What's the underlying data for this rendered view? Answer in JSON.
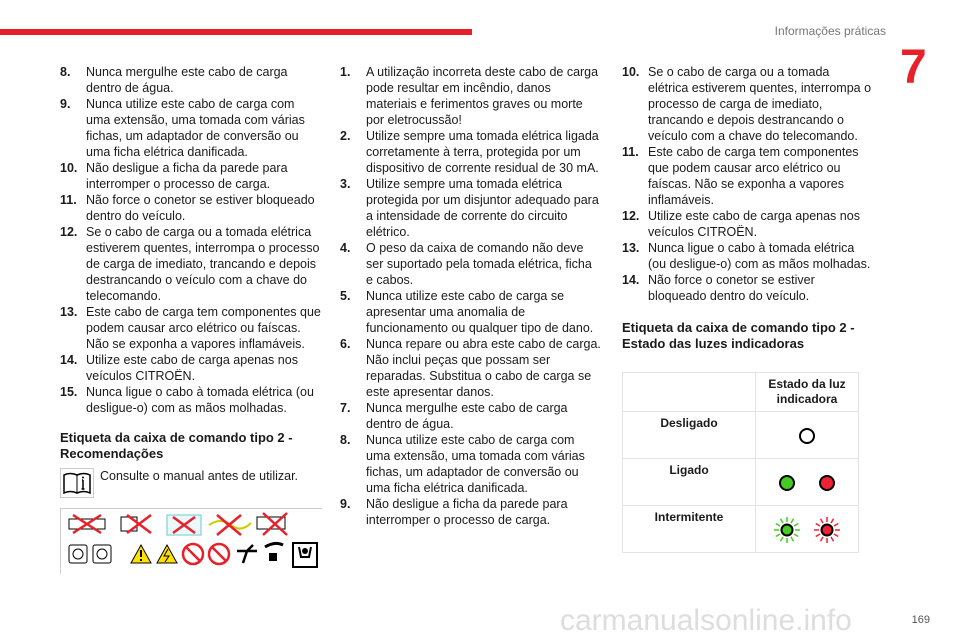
{
  "header": {
    "section": "Informações práticas",
    "chapter": "7"
  },
  "col1": {
    "items": [
      {
        "n": "8.",
        "t": "Nunca mergulhe este cabo de carga dentro de água."
      },
      {
        "n": "9.",
        "t": "Nunca utilize este cabo de carga com uma extensão, uma tomada com várias fichas, um adaptador de conversão ou uma ficha elétrica danificada."
      },
      {
        "n": "10.",
        "t": "Não desligue a ficha da parede para interromper o processo de carga."
      },
      {
        "n": "11.",
        "t": "Não force o conetor se estiver bloqueado dentro do veículo."
      },
      {
        "n": "12.",
        "t": "Se o cabo de carga ou a tomada elétrica estiverem quentes, interrompa o processo de carga de imediato, trancando e depois destrancando o veículo com a chave do telecomando."
      },
      {
        "n": "13.",
        "t": "Este cabo de carga tem componentes que podem causar arco elétrico ou faíscas. Não se exponha a vapores inflamáveis."
      },
      {
        "n": "14.",
        "t": "Utilize este cabo de carga apenas nos veículos CITROËN."
      },
      {
        "n": "15.",
        "t": "Nunca ligue o cabo à tomada elétrica (ou desligue-o) com as mãos molhadas."
      }
    ],
    "heading": "Etiqueta da caixa de comando tipo 2 - Recomendações",
    "note": "Consulte o manual antes de utilizar."
  },
  "col2": {
    "items": [
      {
        "n": "1.",
        "t": "A utilização incorreta deste cabo de carga pode resultar em incêndio, danos materiais e ferimentos graves ou morte por eletrocussão!"
      },
      {
        "n": "2.",
        "t": "Utilize sempre uma tomada elétrica ligada corretamente à terra, protegida por um dispositivo de corrente residual de 30 mA."
      },
      {
        "n": "3.",
        "t": "Utilize sempre uma tomada elétrica protegida por um disjuntor adequado para a intensidade de corrente do circuito elétrico."
      },
      {
        "n": "4.",
        "t": "O peso da caixa de comando não deve ser suportado pela tomada elétrica, ficha e cabos."
      },
      {
        "n": "5.",
        "t": "Nunca utilize este cabo de carga se apresentar uma anomalia de funcionamento ou qualquer tipo de dano."
      },
      {
        "n": "6.",
        "t": "Nunca repare ou abra este cabo de carga. Não inclui peças que possam ser reparadas. Substitua o cabo de carga se este apresentar danos."
      },
      {
        "n": "7.",
        "t": "Nunca mergulhe este cabo de carga dentro de água."
      },
      {
        "n": "8.",
        "t": "Nunca utilize este cabo de carga com uma extensão, uma tomada com várias fichas, um adaptador de conversão ou uma ficha elétrica danificada."
      },
      {
        "n": "9.",
        "t": "Não desligue a ficha da parede para interromper o processo de carga."
      }
    ]
  },
  "col3": {
    "items": [
      {
        "n": "10.",
        "t": "Se o cabo de carga ou a tomada elétrica estiverem quentes, interrompa o processo de carga de imediato, trancando e depois destrancando o veículo com a chave do telecomando."
      },
      {
        "n": "11.",
        "t": "Este cabo de carga tem componentes que podem causar arco elétrico ou faíscas. Não se exponha a vapores inflamáveis."
      },
      {
        "n": "12.",
        "t": "Utilize este cabo de carga apenas nos veículos CITROËN."
      },
      {
        "n": "13.",
        "t": "Nunca ligue o cabo à tomada elétrica (ou desligue-o) com as mãos molhadas."
      },
      {
        "n": "14.",
        "t": "Não force o conetor se estiver bloqueado dentro do veículo."
      }
    ],
    "heading": "Etiqueta da caixa de comando tipo 2 - Estado das luzes indicadoras",
    "table": {
      "header": "Estado da luz indicadora",
      "rows": [
        {
          "label": "Desligado",
          "lights": [
            "off"
          ]
        },
        {
          "label": "Ligado",
          "lights": [
            "green",
            "red"
          ]
        },
        {
          "label": "Intermitente",
          "lights": [
            "green-blink",
            "red-blink"
          ]
        }
      ]
    }
  },
  "colors": {
    "accent": "#e8202a",
    "green": "#44cc22",
    "red": "#ee2233"
  },
  "footer": {
    "page": "169",
    "watermark": "carmanualsonline.info"
  }
}
